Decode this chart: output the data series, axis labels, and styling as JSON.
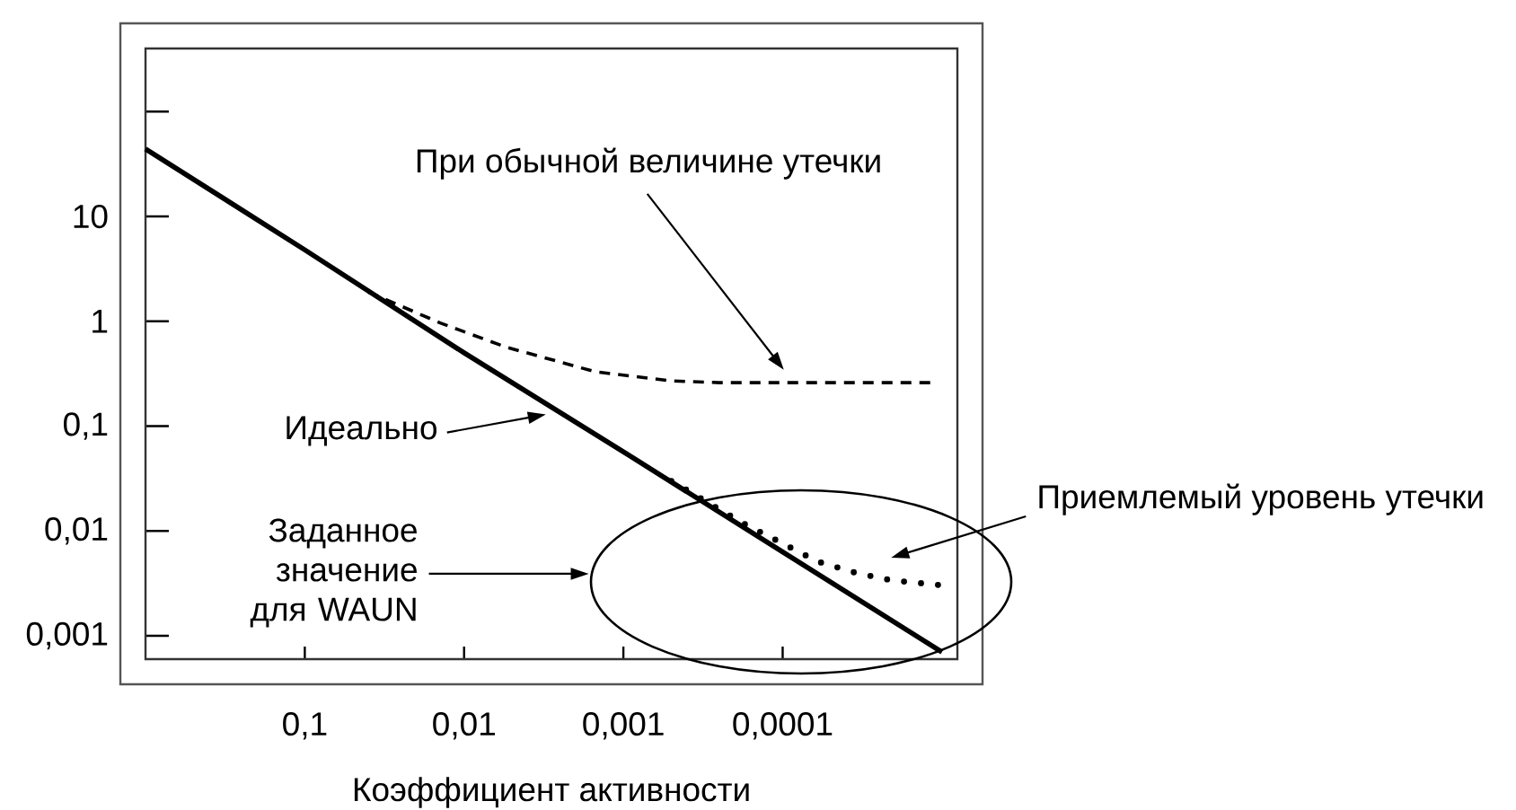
{
  "chart_data": {
    "type": "line",
    "xlabel": "Коэффициент активности",
    "log": "xy",
    "xlim": [
      1,
      8e-06
    ],
    "ylim": [
      0.0006,
      400
    ],
    "xticks": [
      {
        "value": 0.1,
        "label": "0,1"
      },
      {
        "value": 0.01,
        "label": "0,01"
      },
      {
        "value": 0.001,
        "label": "0,001"
      },
      {
        "value": 0.0001,
        "label": "0,0001"
      }
    ],
    "yticks": [
      {
        "value": 0.001,
        "label": "0,001"
      },
      {
        "value": 0.01,
        "label": "0,01"
      },
      {
        "value": 0.1,
        "label": "0,1"
      },
      1,
      10,
      {
        "value": 100,
        "label": null
      }
    ],
    "series": [
      {
        "color": "#000000",
        "line_style": "solid",
        "x": [
          1,
          0.1,
          0.01,
          0.001,
          0.0001,
          1e-05
        ],
        "values": [
          44,
          4.8,
          0.5,
          0.057,
          0.0063,
          0.0007
        ]
      },
      {
        "color": "#000000",
        "line_style": "dashed",
        "x": [
          0.04,
          0.014,
          0.0055,
          0.0015,
          0.0005,
          0.00025,
          1.1e-05
        ],
        "values": [
          1.9,
          0.96,
          0.57,
          0.33,
          0.27,
          0.26,
          0.26
        ]
      },
      {
        "color": "#000000",
        "line_style": "dotted",
        "x": [
          0.0005,
          0.00018,
          0.0001,
          6e-05,
          3.5e-05,
          2.1e-05,
          9.3e-06
        ],
        "values": [
          0.03,
          0.012,
          0.0076,
          0.0051,
          0.004,
          0.0034,
          0.003
        ]
      }
    ],
    "annotations": [
      "При обычной величине утечки",
      "Идеально",
      "Заданное значение для WAUN",
      "Приемлемый уровень утечки"
    ]
  }
}
